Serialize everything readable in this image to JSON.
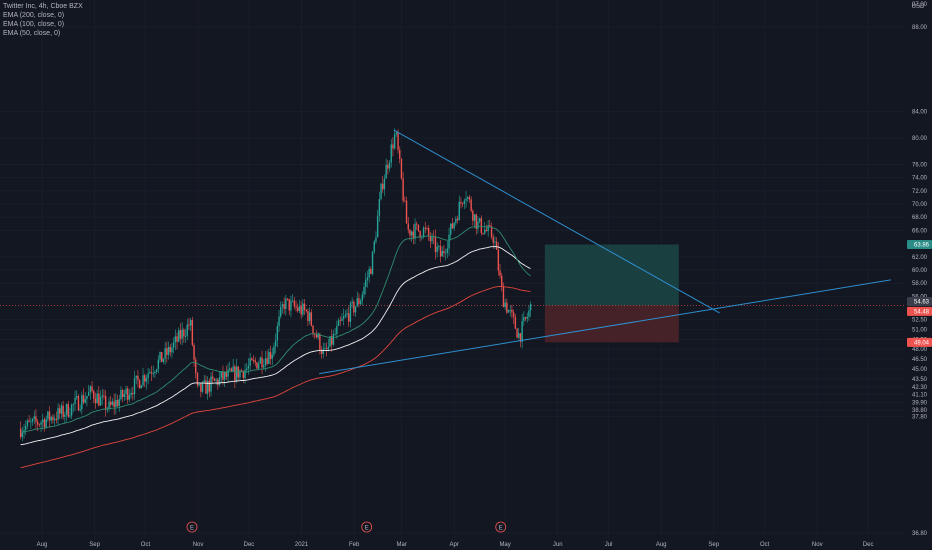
{
  "title": "Twitter Inc, 4h, Cboe BZX",
  "indicators": [
    "EMA (200, close, 0)",
    "EMA (100, close, 0)",
    "EMA (50, close, 0)"
  ],
  "currency": "USD",
  "colors": {
    "background": "#131722",
    "up": "#26a69a",
    "down": "#ef5350",
    "ema200": "#e0453d",
    "ema100": "#f0f0f0",
    "ema50": "#2e8b6e",
    "trendline": "#2e8fd0",
    "profit_zone": "#1b4747",
    "loss_zone": "#4a2328",
    "grid": "#1e222d"
  },
  "chart_data": {
    "type": "candlestick",
    "title": "Twitter Inc, 4h, Cboe BZX",
    "y_tick_labels": [
      "97.00",
      "88.00",
      "84.00",
      "80.00",
      "76.00",
      "74.00",
      "72.00",
      "70.00",
      "68.00",
      "66.00",
      "62.00",
      "60.00",
      "58.00",
      "56.00",
      "52.50",
      "51.00",
      "49.50",
      "48.00",
      "46.50",
      "45.00",
      "43.50",
      "42.30",
      "41.10",
      "39.90",
      "38.80",
      "37.80",
      "36.80"
    ],
    "x_tick_labels": [
      "Aug",
      "Sep",
      "Oct",
      "Nov",
      "Dec",
      "2021",
      "Feb",
      "Mar",
      "Apr",
      "May",
      "Jun",
      "Jul",
      "Aug",
      "Sep",
      "Oct",
      "Nov",
      "Dec"
    ],
    "earnings_markers": [
      "E",
      "E",
      "E"
    ],
    "price_tags": {
      "target": "63.86",
      "entry_a": "54.63",
      "entry_b": "54.48",
      "stop": "49.04"
    },
    "approx_path": [
      {
        "date": "2020-07-20",
        "close": 36.0
      },
      {
        "date": "2020-07-31",
        "close": 37.0
      },
      {
        "date": "2020-08-15",
        "close": 38.5
      },
      {
        "date": "2020-08-31",
        "close": 41.5
      },
      {
        "date": "2020-09-10",
        "close": 39.0
      },
      {
        "date": "2020-09-25",
        "close": 42.5
      },
      {
        "date": "2020-10-15",
        "close": 47.5
      },
      {
        "date": "2020-10-28",
        "close": 52.0
      },
      {
        "date": "2020-11-01",
        "close": 41.5
      },
      {
        "date": "2020-11-15",
        "close": 43.5
      },
      {
        "date": "2020-11-30",
        "close": 45.0
      },
      {
        "date": "2020-12-15",
        "close": 47.5
      },
      {
        "date": "2020-12-22",
        "close": 55.0
      },
      {
        "date": "2021-01-05",
        "close": 53.5
      },
      {
        "date": "2021-01-15",
        "close": 47.0
      },
      {
        "date": "2021-01-25",
        "close": 52.0
      },
      {
        "date": "2021-02-05",
        "close": 55.5
      },
      {
        "date": "2021-02-12",
        "close": 61.0
      },
      {
        "date": "2021-02-18",
        "close": 73.0
      },
      {
        "date": "2021-02-26",
        "close": 80.8
      },
      {
        "date": "2021-03-05",
        "close": 66.0
      },
      {
        "date": "2021-03-15",
        "close": 66.0
      },
      {
        "date": "2021-03-25",
        "close": 62.0
      },
      {
        "date": "2021-04-08",
        "close": 72.0
      },
      {
        "date": "2021-04-15",
        "close": 67.0
      },
      {
        "date": "2021-04-25",
        "close": 65.0
      },
      {
        "date": "2021-04-30",
        "close": 56.0
      },
      {
        "date": "2021-05-10",
        "close": 50.0
      },
      {
        "date": "2021-05-17",
        "close": 54.5
      }
    ],
    "trendlines": [
      {
        "name": "descending",
        "from": {
          "date": "2021-02-25",
          "price": 81.2
        },
        "to": {
          "date": "2021-09-05",
          "price": 53.5
        }
      },
      {
        "name": "ascending",
        "from": {
          "date": "2021-01-12",
          "price": 44.3
        },
        "to": {
          "date": "2021-12-15",
          "price": 58.5
        }
      }
    ],
    "position": {
      "entry": 54.63,
      "target": 63.86,
      "stop": 49.04,
      "from": "2021-05-25",
      "to": "2021-08-12"
    }
  }
}
